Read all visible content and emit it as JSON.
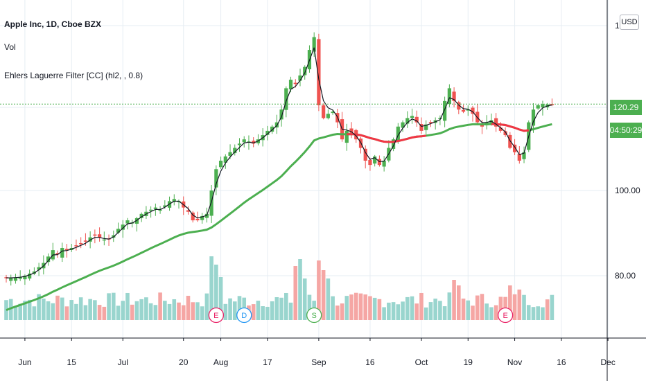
{
  "legend": {
    "symbol": "Apple Inc, 1D, Cboe BZX",
    "volume": "Vol",
    "indicator": "Ehlers Laguerre Filter [CC] (hl2, , 0.8)"
  },
  "currency_button": "USD",
  "last_price_label": "120.29",
  "countdown_label": "04:50:29",
  "y_axis_top_partial": "1",
  "colors": {
    "up": "#4caf50",
    "down": "#ef5350",
    "vol_up": "#99d5ce",
    "vol_down": "#f5a6a4",
    "filter_up": "#4caf50",
    "filter_down": "#f23645",
    "fast_line": "#131722",
    "grid": "#e6edf3",
    "axis_text": "#131722"
  },
  "chart_data": {
    "type": "candlestick",
    "title": "Apple Inc, 1D, Cboe BZX",
    "y_ticks": [
      80,
      100
    ],
    "y_tick_labels": [
      "80.00",
      "100.00"
    ],
    "x_tick_labels": [
      {
        "label": "Jun",
        "idx": 4
      },
      {
        "label": "15",
        "idx": 14
      },
      {
        "label": "Jul",
        "idx": 25
      },
      {
        "label": "20",
        "idx": 38
      },
      {
        "label": "Aug",
        "idx": 46
      },
      {
        "label": "17",
        "idx": 56
      },
      {
        "label": "Sep",
        "idx": 67
      },
      {
        "label": "16",
        "idx": 78
      },
      {
        "label": "Oct",
        "idx": 89
      },
      {
        "label": "19",
        "idx": 99
      },
      {
        "label": "Nov",
        "idx": 109
      },
      {
        "label": "16",
        "idx": 119
      },
      {
        "label": "Dec",
        "idx": 129
      }
    ],
    "ylim": [
      70.5,
      144
    ],
    "last_price": 120.29,
    "slow_filter_red_from_idx": 73,
    "slow_filter_red_to_idx": 90,
    "slow_filter_red_from_idx_2": 104,
    "slow_filter_red_to_idx_2": 112,
    "event_markers": [
      {
        "label": "E",
        "idx": 45,
        "kind": "earnings"
      },
      {
        "label": "D",
        "idx": 51,
        "kind": "dividend"
      },
      {
        "label": "S",
        "idx": 66,
        "kind": "split"
      },
      {
        "label": "E",
        "idx": 107,
        "kind": "earnings"
      }
    ],
    "closes": [
      79.5,
      79.5,
      79.6,
      79.7,
      80.0,
      80.5,
      81.0,
      82.0,
      83.0,
      84.5,
      86.0,
      85.0,
      86.5,
      86.0,
      86.5,
      87.0,
      87.5,
      88.0,
      89.0,
      89.5,
      89.0,
      88.5,
      88.5,
      89.5,
      91.0,
      92.0,
      93.0,
      92.5,
      93.5,
      94.5,
      95.0,
      95.5,
      96.0,
      95.5,
      96.5,
      97.5,
      98.0,
      97.5,
      96.0,
      95.0,
      93.0,
      93.0,
      94.0,
      94.5,
      100.0,
      105.0,
      107.0,
      108.0,
      109.0,
      110.0,
      111.0,
      112.0,
      111.5,
      111.0,
      112.0,
      113.0,
      114.0,
      115.0,
      116.0,
      119.0,
      124.0,
      126.0,
      125.0,
      127.0,
      129.0,
      133.0,
      136.0,
      120.0,
      117.0,
      118.0,
      118.5,
      116.0,
      112.0,
      114.0,
      113.5,
      112.0,
      110.0,
      107.0,
      106.0,
      108.0,
      106.0,
      107.0,
      110.0,
      112.0,
      115.0,
      116.0,
      117.0,
      117.5,
      116.0,
      114.0,
      115.5,
      116.0,
      116.5,
      117.0,
      121.0,
      124.0,
      121.0,
      119.0,
      118.5,
      119.0,
      118.0,
      116.0,
      115.0,
      116.0,
      116.5,
      115.0,
      114.0,
      113.0,
      110.0,
      109.0,
      107.0,
      109.0,
      116.0,
      119.0,
      120.0,
      120.3,
      120.2,
      120.29
    ]
  }
}
